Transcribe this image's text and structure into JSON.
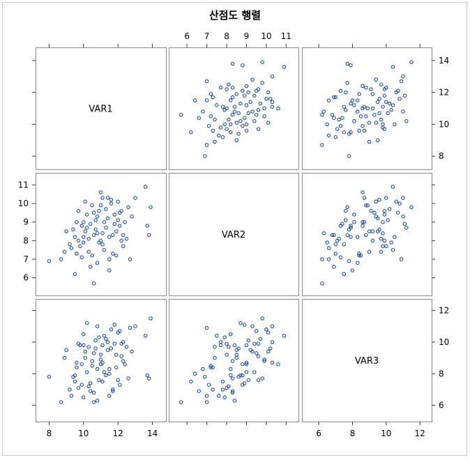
{
  "chart_data": {
    "type": "scatter",
    "title": "산점도 행렬",
    "variables": [
      "VAR1",
      "VAR2",
      "VAR3"
    ],
    "axis_ranges": {
      "VAR1": [
        7.7,
        14.3
      ],
      "VAR2": [
        5.5,
        11.2
      ],
      "VAR3": [
        5.5,
        12.2
      ]
    },
    "ticks": {
      "VAR1": [
        8,
        10,
        12,
        14
      ],
      "VAR2": [
        6,
        7,
        8,
        9,
        10,
        11
      ],
      "VAR3": [
        6,
        8,
        10,
        12
      ]
    },
    "marker": "open-circle",
    "marker_color": "#1f4e9c",
    "grid": false,
    "points": [
      [
        8.0,
        6.9,
        7.8
      ],
      [
        8.7,
        7.0,
        6.2
      ],
      [
        9.0,
        8.5,
        9.5
      ],
      [
        9.2,
        7.8,
        7.0
      ],
      [
        9.3,
        7.6,
        6.6
      ],
      [
        9.5,
        8.2,
        7.9
      ],
      [
        9.6,
        7.3,
        8.4
      ],
      [
        9.7,
        8.0,
        7.1
      ],
      [
        9.8,
        7.7,
        9.8
      ],
      [
        9.9,
        8.8,
        8.6
      ],
      [
        10.0,
        7.9,
        6.5
      ],
      [
        10.1,
        8.5,
        9.0
      ],
      [
        10.2,
        9.4,
        8.1
      ],
      [
        10.3,
        7.4,
        9.7
      ],
      [
        10.4,
        8.9,
        7.4
      ],
      [
        10.5,
        9.9,
        8.8
      ],
      [
        10.6,
        8.3,
        6.8
      ],
      [
        10.7,
        9.1,
        10.1
      ],
      [
        10.8,
        6.8,
        8.3
      ],
      [
        10.9,
        9.6,
        7.6
      ],
      [
        11.0,
        8.0,
        9.2
      ],
      [
        11.1,
        10.3,
        8.7
      ],
      [
        11.2,
        7.5,
        10.4
      ],
      [
        11.3,
        8.7,
        7.9
      ],
      [
        11.4,
        9.2,
        9.5
      ],
      [
        11.5,
        6.4,
        8.0
      ],
      [
        11.6,
        10.0,
        10.8
      ],
      [
        11.7,
        8.3,
        6.9
      ],
      [
        11.8,
        9.4,
        9.9
      ],
      [
        11.9,
        7.2,
        8.4
      ],
      [
        12.0,
        10.1,
        10.6
      ],
      [
        12.1,
        8.8,
        7.3
      ],
      [
        12.2,
        9.6,
        9.1
      ],
      [
        12.3,
        7.7,
        10.0
      ],
      [
        12.4,
        9.0,
        8.6
      ],
      [
        12.5,
        8.1,
        9.7
      ],
      [
        12.6,
        9.8,
        7.7
      ],
      [
        12.7,
        7.0,
        10.9
      ],
      [
        12.8,
        9.3,
        9.4
      ],
      [
        13.0,
        10.3,
        11.0
      ],
      [
        13.6,
        10.9,
        10.4
      ],
      [
        13.7,
        8.8,
        7.9
      ],
      [
        13.8,
        8.3,
        7.7
      ],
      [
        13.9,
        9.8,
        11.5
      ],
      [
        8.9,
        7.4,
        9.0
      ],
      [
        9.4,
        8.6,
        7.8
      ],
      [
        10.0,
        9.0,
        9.8
      ],
      [
        10.3,
        8.1,
        7.2
      ],
      [
        10.5,
        7.2,
        8.5
      ],
      [
        10.6,
        9.5,
        9.3
      ],
      [
        10.8,
        8.4,
        6.3
      ],
      [
        11.0,
        9.9,
        8.9
      ],
      [
        11.1,
        7.8,
        7.5
      ],
      [
        11.3,
        9.7,
        10.2
      ],
      [
        11.5,
        8.2,
        8.3
      ],
      [
        11.6,
        10.2,
        9.6
      ],
      [
        11.8,
        8.9,
        11.1
      ],
      [
        12.0,
        9.1,
        7.6
      ],
      [
        12.2,
        8.0,
        9.9
      ],
      [
        9.6,
        9.0,
        8.7
      ],
      [
        9.9,
        7.1,
        7.3
      ],
      [
        10.1,
        10.1,
        9.4
      ],
      [
        10.4,
        6.6,
        6.9
      ],
      [
        10.7,
        8.6,
        9.6
      ],
      [
        10.9,
        7.9,
        10.3
      ],
      [
        11.2,
        9.0,
        8.1
      ],
      [
        11.4,
        10.3,
        10.0
      ],
      [
        11.7,
        7.3,
        7.0
      ],
      [
        11.9,
        8.5,
        9.2
      ],
      [
        12.1,
        9.5,
        10.7
      ],
      [
        10.2,
        8.7,
        11.2
      ],
      [
        10.6,
        5.7,
        6.2
      ],
      [
        11.0,
        10.6,
        8.6
      ],
      [
        9.5,
        6.2,
        7.5
      ],
      [
        12.3,
        8.3,
        8.8
      ],
      [
        9.7,
        9.6,
        9.9
      ],
      [
        10.0,
        8.2,
        10.5
      ],
      [
        11.5,
        7.0,
        6.6
      ],
      [
        10.8,
        9.3,
        11.0
      ],
      [
        11.1,
        8.4,
        9.8
      ]
    ]
  }
}
